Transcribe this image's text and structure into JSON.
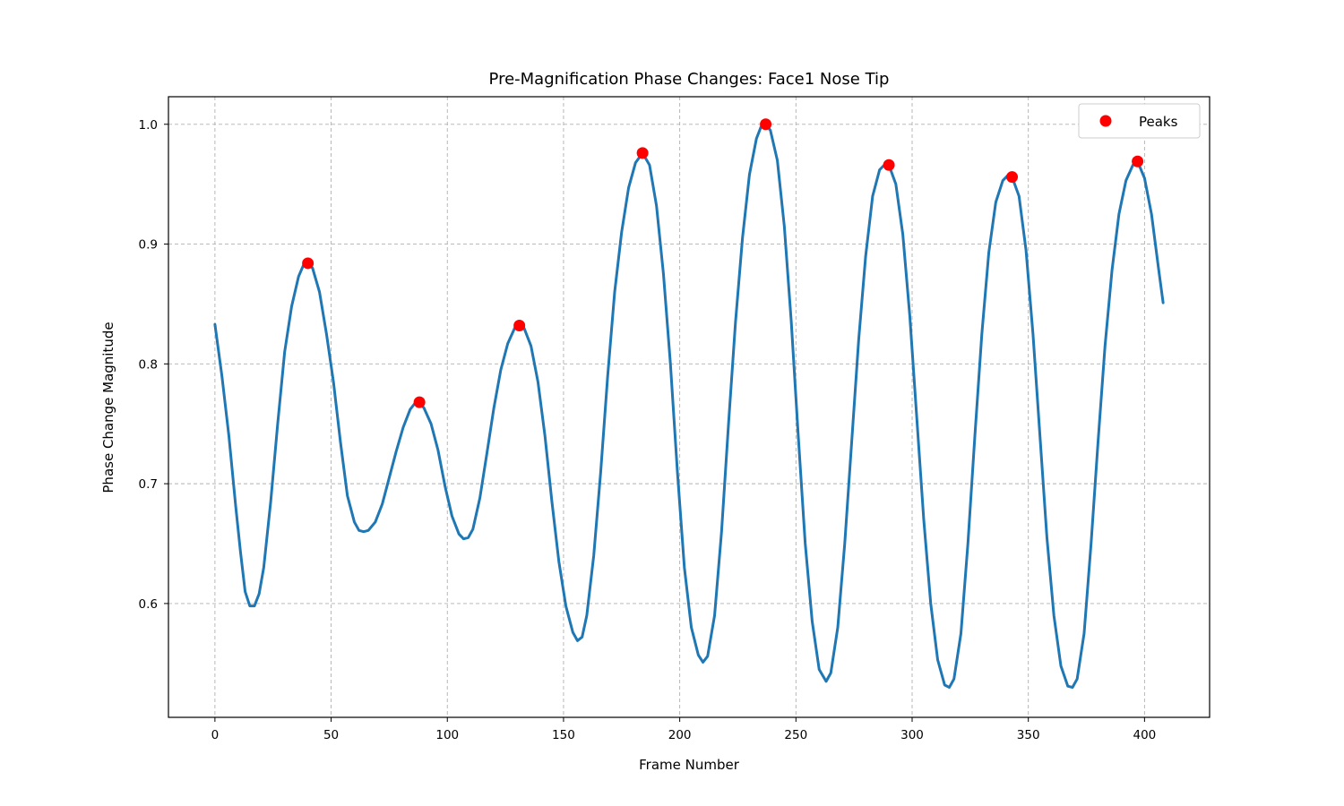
{
  "chart_data": {
    "type": "line",
    "title": "Pre-Magnification Phase Changes: Face1 Nose Tip",
    "xlabel": "Frame Number",
    "ylabel": "Phase Change Magnitude",
    "xlim": [
      -20,
      428
    ],
    "ylim": [
      0.505,
      1.023
    ],
    "xticks": [
      0,
      50,
      100,
      150,
      200,
      250,
      300,
      350,
      400
    ],
    "yticks": [
      0.6,
      0.7,
      0.8,
      0.9,
      1.0
    ],
    "xtick_labels": [
      "0",
      "50",
      "100",
      "150",
      "200",
      "250",
      "300",
      "350",
      "400"
    ],
    "ytick_labels": [
      "0.6",
      "0.7",
      "0.8",
      "0.9",
      "1.0"
    ],
    "grid": true,
    "legend_position": "top-right",
    "series": [
      {
        "kind": "line",
        "color": "#1f77b4",
        "points": [
          [
            0,
            0.833
          ],
          [
            3,
            0.79
          ],
          [
            6,
            0.74
          ],
          [
            9,
            0.68
          ],
          [
            11,
            0.643
          ],
          [
            13,
            0.61
          ],
          [
            15,
            0.598
          ],
          [
            17,
            0.598
          ],
          [
            19,
            0.608
          ],
          [
            21,
            0.63
          ],
          [
            24,
            0.685
          ],
          [
            27,
            0.75
          ],
          [
            30,
            0.81
          ],
          [
            33,
            0.848
          ],
          [
            36,
            0.873
          ],
          [
            38,
            0.882
          ],
          [
            40,
            0.884
          ],
          [
            42,
            0.88
          ],
          [
            45,
            0.86
          ],
          [
            48,
            0.825
          ],
          [
            51,
            0.785
          ],
          [
            54,
            0.735
          ],
          [
            57,
            0.69
          ],
          [
            60,
            0.668
          ],
          [
            62,
            0.661
          ],
          [
            64,
            0.66
          ],
          [
            66,
            0.661
          ],
          [
            69,
            0.668
          ],
          [
            72,
            0.683
          ],
          [
            75,
            0.705
          ],
          [
            78,
            0.727
          ],
          [
            81,
            0.747
          ],
          [
            84,
            0.762
          ],
          [
            86,
            0.767
          ],
          [
            88,
            0.768
          ],
          [
            90,
            0.763
          ],
          [
            93,
            0.75
          ],
          [
            96,
            0.728
          ],
          [
            99,
            0.698
          ],
          [
            102,
            0.673
          ],
          [
            105,
            0.658
          ],
          [
            107,
            0.654
          ],
          [
            109,
            0.655
          ],
          [
            111,
            0.662
          ],
          [
            114,
            0.688
          ],
          [
            117,
            0.725
          ],
          [
            120,
            0.763
          ],
          [
            123,
            0.795
          ],
          [
            126,
            0.817
          ],
          [
            129,
            0.83
          ],
          [
            131,
            0.832
          ],
          [
            133,
            0.83
          ],
          [
            136,
            0.815
          ],
          [
            139,
            0.785
          ],
          [
            142,
            0.74
          ],
          [
            145,
            0.685
          ],
          [
            148,
            0.635
          ],
          [
            151,
            0.598
          ],
          [
            154,
            0.576
          ],
          [
            156,
            0.569
          ],
          [
            158,
            0.572
          ],
          [
            160,
            0.59
          ],
          [
            163,
            0.64
          ],
          [
            166,
            0.71
          ],
          [
            169,
            0.79
          ],
          [
            172,
            0.86
          ],
          [
            175,
            0.91
          ],
          [
            178,
            0.947
          ],
          [
            181,
            0.968
          ],
          [
            184,
            0.976
          ],
          [
            187,
            0.966
          ],
          [
            190,
            0.932
          ],
          [
            193,
            0.875
          ],
          [
            196,
            0.8
          ],
          [
            199,
            0.71
          ],
          [
            202,
            0.63
          ],
          [
            205,
            0.58
          ],
          [
            208,
            0.557
          ],
          [
            210,
            0.551
          ],
          [
            212,
            0.556
          ],
          [
            215,
            0.59
          ],
          [
            218,
            0.66
          ],
          [
            221,
            0.75
          ],
          [
            224,
            0.835
          ],
          [
            227,
            0.905
          ],
          [
            230,
            0.958
          ],
          [
            233,
            0.988
          ],
          [
            235,
            0.998
          ],
          [
            237,
            1.0
          ],
          [
            239,
            0.995
          ],
          [
            242,
            0.97
          ],
          [
            245,
            0.915
          ],
          [
            248,
            0.835
          ],
          [
            251,
            0.74
          ],
          [
            254,
            0.65
          ],
          [
            257,
            0.585
          ],
          [
            260,
            0.545
          ],
          [
            263,
            0.535
          ],
          [
            265,
            0.542
          ],
          [
            268,
            0.58
          ],
          [
            271,
            0.65
          ],
          [
            274,
            0.735
          ],
          [
            277,
            0.82
          ],
          [
            280,
            0.89
          ],
          [
            283,
            0.94
          ],
          [
            286,
            0.962
          ],
          [
            288,
            0.966
          ],
          [
            290,
            0.966
          ],
          [
            293,
            0.95
          ],
          [
            296,
            0.908
          ],
          [
            299,
            0.84
          ],
          [
            302,
            0.755
          ],
          [
            305,
            0.67
          ],
          [
            308,
            0.6
          ],
          [
            311,
            0.553
          ],
          [
            314,
            0.532
          ],
          [
            316,
            0.53
          ],
          [
            318,
            0.537
          ],
          [
            321,
            0.575
          ],
          [
            324,
            0.65
          ],
          [
            327,
            0.74
          ],
          [
            330,
            0.825
          ],
          [
            333,
            0.893
          ],
          [
            336,
            0.935
          ],
          [
            339,
            0.953
          ],
          [
            341,
            0.957
          ],
          [
            343,
            0.956
          ],
          [
            346,
            0.94
          ],
          [
            349,
            0.895
          ],
          [
            352,
            0.825
          ],
          [
            355,
            0.74
          ],
          [
            358,
            0.655
          ],
          [
            361,
            0.59
          ],
          [
            364,
            0.548
          ],
          [
            367,
            0.531
          ],
          [
            369,
            0.53
          ],
          [
            371,
            0.537
          ],
          [
            374,
            0.575
          ],
          [
            377,
            0.65
          ],
          [
            380,
            0.735
          ],
          [
            383,
            0.815
          ],
          [
            386,
            0.878
          ],
          [
            389,
            0.925
          ],
          [
            392,
            0.953
          ],
          [
            395,
            0.966
          ],
          [
            397,
            0.969
          ],
          [
            400,
            0.955
          ],
          [
            403,
            0.925
          ],
          [
            406,
            0.88
          ],
          [
            408,
            0.851
          ]
        ]
      },
      {
        "name": "Peaks",
        "kind": "markers",
        "color": "#ff0000",
        "points": [
          [
            40,
            0.884
          ],
          [
            88,
            0.768
          ],
          [
            131,
            0.832
          ],
          [
            184,
            0.976
          ],
          [
            237,
            1.0
          ],
          [
            290,
            0.966
          ],
          [
            343,
            0.956
          ],
          [
            397,
            0.969
          ]
        ]
      }
    ]
  }
}
